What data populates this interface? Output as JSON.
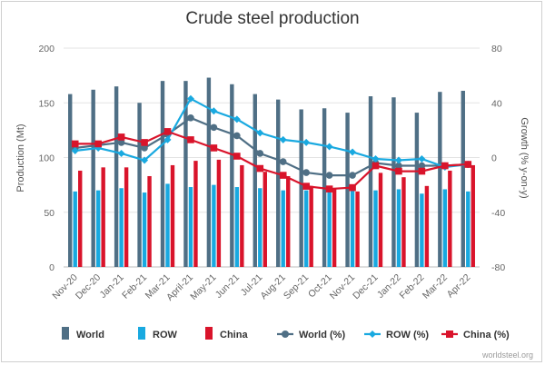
{
  "chart_data": {
    "type": "bar",
    "title": "Crude steel production",
    "ylabel": "Production (Mt)",
    "y2label": "Growth (% y-on-y)",
    "ylim": [
      0,
      200
    ],
    "y2lim": [
      -80,
      80
    ],
    "yticks": [
      0,
      50,
      100,
      150,
      200
    ],
    "y2ticks": [
      -80,
      -40,
      0,
      40,
      80
    ],
    "categories": [
      "Nov-20",
      "Dec-20",
      "Jan-21",
      "Feb-21",
      "Mar-21",
      "April-21",
      "May-21",
      "Jun-21",
      "Jul-21",
      "Aug-21",
      "Sep-21",
      "Oct-21",
      "Nov-21",
      "Dec-21",
      "Jan-22",
      "Feb-22",
      "Mar-22",
      "Apr-22"
    ],
    "grid": true,
    "legend_position": "bottom",
    "series": [
      {
        "name": "World",
        "kind": "bar",
        "axis": "left",
        "color": "#4f6f85",
        "values": [
          158,
          162,
          165,
          150,
          170,
          170,
          173,
          167,
          158,
          153,
          144,
          145,
          141,
          156,
          155,
          141,
          160,
          161
        ]
      },
      {
        "name": "ROW",
        "kind": "bar",
        "axis": "left",
        "color": "#19a9e0",
        "values": [
          69,
          70,
          72,
          68,
          76,
          73,
          75,
          73,
          72,
          70,
          70,
          69,
          70,
          70,
          71,
          67,
          71,
          69
        ]
      },
      {
        "name": "China",
        "kind": "bar",
        "axis": "left",
        "color": "#d9142b",
        "values": [
          88,
          91,
          91,
          83,
          93,
          97,
          98,
          93,
          87,
          83,
          74,
          72,
          69,
          86,
          82,
          74,
          88,
          93
        ]
      },
      {
        "name": "World (%)",
        "kind": "line",
        "axis": "right",
        "color": "#4f6f85",
        "values": [
          7,
          9,
          11,
          7,
          17,
          29,
          22,
          16,
          3,
          -3,
          -11,
          -13,
          -13,
          -4,
          -6,
          -6,
          -6,
          -5
        ]
      },
      {
        "name": "ROW (%)",
        "kind": "line",
        "axis": "right",
        "color": "#19a9e0",
        "values": [
          5,
          7,
          3,
          -2,
          13,
          43,
          34,
          28,
          18,
          13,
          11,
          8,
          4,
          -1,
          -2,
          -1,
          -7,
          -5
        ]
      },
      {
        "name": "China (%)",
        "kind": "line",
        "axis": "right",
        "color": "#d9142b",
        "values": [
          10,
          10,
          15,
          11,
          19,
          13,
          7,
          1,
          -8,
          -13,
          -21,
          -23,
          -22,
          -6,
          -10,
          -10,
          -6,
          -5
        ]
      }
    ]
  },
  "credit": "worldsteel.org"
}
